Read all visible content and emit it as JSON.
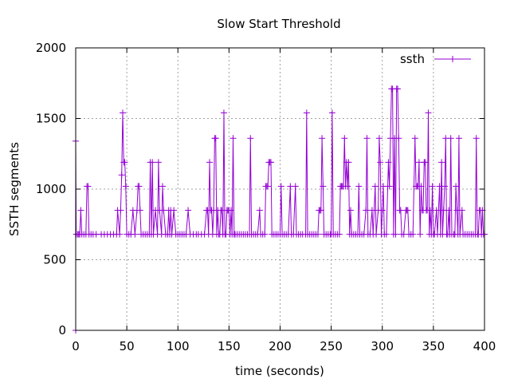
{
  "chart_data": {
    "type": "line",
    "title": "Slow Start Threshold",
    "xlabel": "time (seconds)",
    "ylabel": "SSTH segments",
    "xlim": [
      0,
      400
    ],
    "ylim": [
      0,
      2000
    ],
    "xticks": [
      0,
      50,
      100,
      150,
      200,
      250,
      300,
      350,
      400
    ],
    "yticks": [
      0,
      500,
      1000,
      1500,
      2000
    ],
    "grid": true,
    "legend_position": "top-right",
    "color": "#9400d3",
    "series": [
      {
        "name": "ssth",
        "points": [
          [
            0,
            0
          ],
          [
            0,
            1340
          ],
          [
            0.5,
            680
          ],
          [
            2,
            680
          ],
          [
            3,
            680
          ],
          [
            4,
            680
          ],
          [
            5,
            850
          ],
          [
            6,
            680
          ],
          [
            8,
            680
          ],
          [
            10,
            680
          ],
          [
            11,
            1020
          ],
          [
            12,
            1020
          ],
          [
            13,
            680
          ],
          [
            15,
            680
          ],
          [
            17,
            680
          ],
          [
            20,
            680
          ],
          [
            25,
            680
          ],
          [
            28,
            680
          ],
          [
            31,
            680
          ],
          [
            34,
            680
          ],
          [
            37,
            680
          ],
          [
            40,
            680
          ],
          [
            41,
            850
          ],
          [
            43,
            680
          ],
          [
            44,
            850
          ],
          [
            45,
            1100
          ],
          [
            46,
            1540
          ],
          [
            47,
            1190
          ],
          [
            48,
            1190
          ],
          [
            49,
            1020
          ],
          [
            50,
            680
          ],
          [
            52,
            680
          ],
          [
            54,
            680
          ],
          [
            56,
            850
          ],
          [
            58,
            680
          ],
          [
            60,
            850
          ],
          [
            61,
            1020
          ],
          [
            62,
            1020
          ],
          [
            63,
            850
          ],
          [
            64,
            680
          ],
          [
            66,
            680
          ],
          [
            68,
            680
          ],
          [
            70,
            680
          ],
          [
            72,
            680
          ],
          [
            73,
            1190
          ],
          [
            74,
            680
          ],
          [
            75,
            1190
          ],
          [
            76,
            680
          ],
          [
            78,
            850
          ],
          [
            80,
            680
          ],
          [
            81,
            1190
          ],
          [
            82,
            850
          ],
          [
            84,
            680
          ],
          [
            85,
            1020
          ],
          [
            86,
            850
          ],
          [
            88,
            680
          ],
          [
            90,
            680
          ],
          [
            91,
            850
          ],
          [
            92,
            680
          ],
          [
            93,
            850
          ],
          [
            94,
            680
          ],
          [
            96,
            850
          ],
          [
            98,
            680
          ],
          [
            100,
            680
          ],
          [
            102,
            680
          ],
          [
            104,
            680
          ],
          [
            106,
            680
          ],
          [
            108,
            680
          ],
          [
            110,
            850
          ],
          [
            112,
            680
          ],
          [
            115,
            680
          ],
          [
            118,
            680
          ],
          [
            120,
            680
          ],
          [
            123,
            680
          ],
          [
            126,
            680
          ],
          [
            128,
            850
          ],
          [
            129,
            850
          ],
          [
            130,
            680
          ],
          [
            131,
            1190
          ],
          [
            132,
            850
          ],
          [
            133,
            850
          ],
          [
            134,
            680
          ],
          [
            135,
            850
          ],
          [
            136,
            1360
          ],
          [
            137,
            1360
          ],
          [
            138,
            680
          ],
          [
            139,
            850
          ],
          [
            140,
            680
          ],
          [
            141,
            680
          ],
          [
            142,
            850
          ],
          [
            143,
            850
          ],
          [
            144,
            680
          ],
          [
            145,
            1540
          ],
          [
            146,
            680
          ],
          [
            147,
            680
          ],
          [
            148,
            850
          ],
          [
            149,
            850
          ],
          [
            150,
            850
          ],
          [
            151,
            680
          ],
          [
            152,
            850
          ],
          [
            153,
            680
          ],
          [
            154,
            1360
          ],
          [
            155,
            680
          ],
          [
            156,
            680
          ],
          [
            158,
            680
          ],
          [
            160,
            680
          ],
          [
            162,
            680
          ],
          [
            164,
            680
          ],
          [
            166,
            680
          ],
          [
            168,
            680
          ],
          [
            170,
            680
          ],
          [
            171,
            1360
          ],
          [
            172,
            680
          ],
          [
            174,
            680
          ],
          [
            176,
            680
          ],
          [
            178,
            680
          ],
          [
            180,
            850
          ],
          [
            181,
            680
          ],
          [
            183,
            680
          ],
          [
            185,
            680
          ],
          [
            186,
            1020
          ],
          [
            187,
            1020
          ],
          [
            188,
            1020
          ],
          [
            189,
            1190
          ],
          [
            190,
            1190
          ],
          [
            191,
            1190
          ],
          [
            192,
            680
          ],
          [
            194,
            680
          ],
          [
            196,
            680
          ],
          [
            198,
            680
          ],
          [
            200,
            680
          ],
          [
            201,
            1020
          ],
          [
            202,
            680
          ],
          [
            204,
            680
          ],
          [
            206,
            680
          ],
          [
            208,
            680
          ],
          [
            210,
            1020
          ],
          [
            211,
            680
          ],
          [
            213,
            680
          ],
          [
            215,
            1020
          ],
          [
            216,
            680
          ],
          [
            218,
            680
          ],
          [
            220,
            680
          ],
          [
            222,
            680
          ],
          [
            225,
            680
          ],
          [
            226,
            1540
          ],
          [
            227,
            680
          ],
          [
            229,
            680
          ],
          [
            231,
            680
          ],
          [
            233,
            680
          ],
          [
            235,
            680
          ],
          [
            237,
            680
          ],
          [
            238,
            850
          ],
          [
            239,
            850
          ],
          [
            240,
            850
          ],
          [
            241,
            1360
          ],
          [
            242,
            1020
          ],
          [
            243,
            680
          ],
          [
            245,
            680
          ],
          [
            247,
            680
          ],
          [
            249,
            680
          ],
          [
            250,
            680
          ],
          [
            251,
            1540
          ],
          [
            252,
            680
          ],
          [
            254,
            680
          ],
          [
            256,
            680
          ],
          [
            258,
            680
          ],
          [
            259,
            1020
          ],
          [
            260,
            1020
          ],
          [
            261,
            1020
          ],
          [
            262,
            1020
          ],
          [
            263,
            1360
          ],
          [
            264,
            1020
          ],
          [
            265,
            1190
          ],
          [
            266,
            1020
          ],
          [
            267,
            1190
          ],
          [
            268,
            680
          ],
          [
            269,
            850
          ],
          [
            270,
            680
          ],
          [
            272,
            680
          ],
          [
            274,
            680
          ],
          [
            276,
            680
          ],
          [
            277,
            1020
          ],
          [
            278,
            680
          ],
          [
            280,
            680
          ],
          [
            282,
            680
          ],
          [
            284,
            850
          ],
          [
            285,
            1360
          ],
          [
            286,
            680
          ],
          [
            288,
            680
          ],
          [
            290,
            850
          ],
          [
            291,
            680
          ],
          [
            293,
            1020
          ],
          [
            294,
            680
          ],
          [
            296,
            850
          ],
          [
            297,
            1360
          ],
          [
            298,
            1190
          ],
          [
            299,
            680
          ],
          [
            300,
            850
          ],
          [
            301,
            1020
          ],
          [
            302,
            680
          ],
          [
            304,
            680
          ],
          [
            306,
            1190
          ],
          [
            307,
            1020
          ],
          [
            308,
            1360
          ],
          [
            309,
            1710
          ],
          [
            310,
            1710
          ],
          [
            311,
            680
          ],
          [
            312,
            1360
          ],
          [
            313,
            680
          ],
          [
            314,
            1710
          ],
          [
            315,
            1710
          ],
          [
            316,
            1360
          ],
          [
            317,
            850
          ],
          [
            318,
            850
          ],
          [
            319,
            680
          ],
          [
            321,
            680
          ],
          [
            323,
            850
          ],
          [
            324,
            850
          ],
          [
            325,
            850
          ],
          [
            326,
            680
          ],
          [
            328,
            680
          ],
          [
            330,
            680
          ],
          [
            332,
            1360
          ],
          [
            333,
            1020
          ],
          [
            334,
            1020
          ],
          [
            335,
            1020
          ],
          [
            336,
            1190
          ],
          [
            337,
            680
          ],
          [
            338,
            1020
          ],
          [
            339,
            850
          ],
          [
            340,
            850
          ],
          [
            341,
            1190
          ],
          [
            342,
            1190
          ],
          [
            343,
            850
          ],
          [
            344,
            850
          ],
          [
            345,
            1540
          ],
          [
            346,
            680
          ],
          [
            347,
            850
          ],
          [
            348,
            680
          ],
          [
            349,
            1020
          ],
          [
            350,
            680
          ],
          [
            351,
            680
          ],
          [
            353,
            850
          ],
          [
            354,
            680
          ],
          [
            356,
            1020
          ],
          [
            357,
            680
          ],
          [
            358,
            1190
          ],
          [
            359,
            680
          ],
          [
            360,
            850
          ],
          [
            361,
            1020
          ],
          [
            362,
            1360
          ],
          [
            363,
            680
          ],
          [
            364,
            680
          ],
          [
            365,
            850
          ],
          [
            366,
            680
          ],
          [
            367,
            1360
          ],
          [
            368,
            680
          ],
          [
            370,
            680
          ],
          [
            371,
            680
          ],
          [
            372,
            1020
          ],
          [
            373,
            850
          ],
          [
            374,
            680
          ],
          [
            375,
            1360
          ],
          [
            376,
            680
          ],
          [
            378,
            850
          ],
          [
            379,
            680
          ],
          [
            381,
            680
          ],
          [
            383,
            680
          ],
          [
            385,
            680
          ],
          [
            387,
            680
          ],
          [
            389,
            680
          ],
          [
            391,
            680
          ],
          [
            392,
            1360
          ],
          [
            393,
            680
          ],
          [
            394,
            680
          ],
          [
            395,
            850
          ],
          [
            396,
            850
          ],
          [
            397,
            680
          ],
          [
            398,
            850
          ],
          [
            399,
            680
          ],
          [
            400,
            680
          ]
        ]
      }
    ]
  }
}
